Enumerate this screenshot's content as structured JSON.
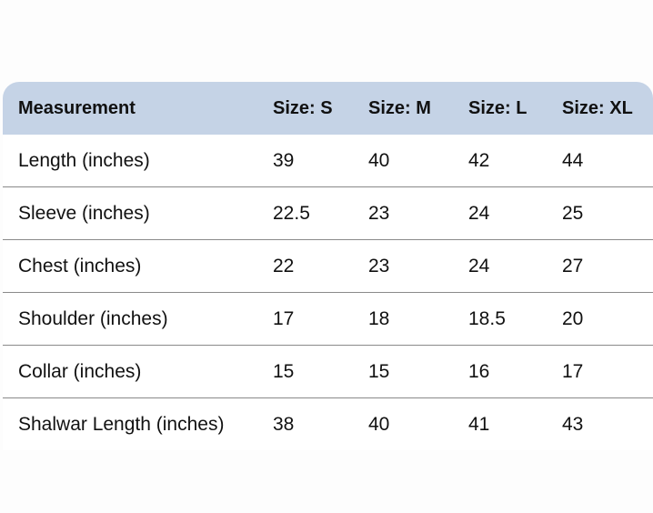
{
  "table": {
    "headers": [
      "Measurement",
      "Size: S",
      "Size: M",
      "Size: L",
      "Size: XL"
    ],
    "rows": [
      [
        "Length (inches)",
        "39",
        "40",
        "42",
        "44"
      ],
      [
        "Sleeve (inches)",
        "22.5",
        "23",
        "24",
        "25"
      ],
      [
        "Chest (inches)",
        "22",
        "23",
        "24",
        "27"
      ],
      [
        "Shoulder (inches)",
        "17",
        "18",
        "18.5",
        "20"
      ],
      [
        "Collar (inches)",
        "15",
        "15",
        "16",
        "17"
      ],
      [
        "Shalwar Length (inches)",
        "38",
        "40",
        "41",
        "43"
      ]
    ]
  },
  "colors": {
    "header_bg": "#c5d3e6",
    "divider": "#8a8a8a"
  }
}
